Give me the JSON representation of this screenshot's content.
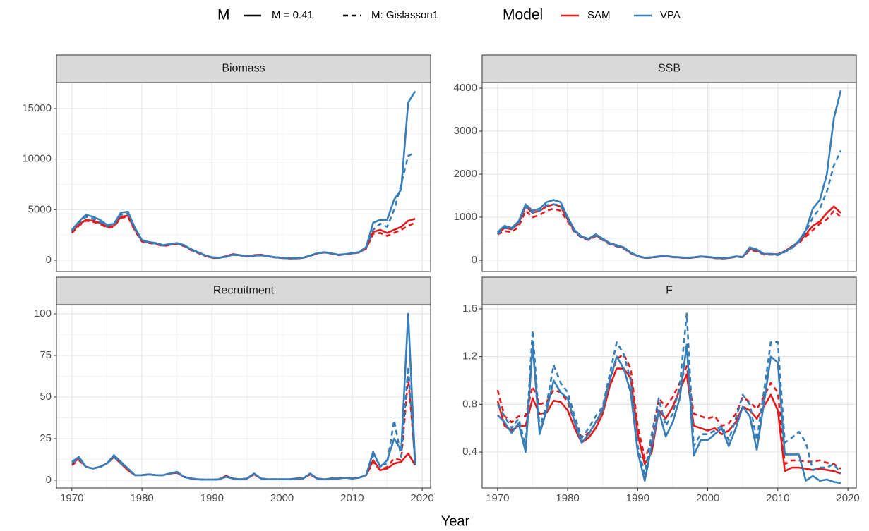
{
  "chart_data": {
    "type": "line",
    "x_label": "Year",
    "grid": true,
    "x": [
      1970,
      1971,
      1972,
      1973,
      1974,
      1975,
      1976,
      1977,
      1978,
      1979,
      1980,
      1981,
      1982,
      1983,
      1984,
      1985,
      1986,
      1987,
      1988,
      1989,
      1990,
      1991,
      1992,
      1993,
      1994,
      1995,
      1996,
      1997,
      1998,
      1999,
      2000,
      2001,
      2002,
      2003,
      2004,
      2005,
      2006,
      2007,
      2008,
      2009,
      2010,
      2011,
      2012,
      2013,
      2014,
      2015,
      2016,
      2017,
      2018,
      2019
    ],
    "xlim": [
      1967.8,
      2021.2
    ],
    "xticks": [
      1970,
      1980,
      1990,
      2000,
      2010,
      2020
    ],
    "legend": {
      "linetype": {
        "title": "M",
        "entries": [
          {
            "label": "M = 0.41",
            "dash": "solid"
          },
          {
            "label": "M: Gislasson1",
            "dash": "dashed"
          }
        ]
      },
      "color": {
        "title": "Model",
        "entries": [
          {
            "label": "SAM",
            "color": "#e41a1c"
          },
          {
            "label": "VPA",
            "color": "#377eb8"
          }
        ]
      }
    },
    "facets": [
      {
        "title": "Biomass",
        "ylim": [
          -1116,
          17575
        ],
        "yticks": [
          0,
          5000,
          10000,
          15000
        ],
        "series": [
          {
            "color": "#e41a1c",
            "dash": "solid",
            "values": [
              2800,
              3500,
              4000,
              3900,
              3700,
              3300,
              3400,
              4300,
              4400,
              3000,
              1900,
              1750,
              1650,
              1450,
              1550,
              1650,
              1450,
              1050,
              750,
              450,
              250,
              230,
              400,
              600,
              500,
              380,
              500,
              550,
              400,
              280,
              230,
              190,
              190,
              240,
              440,
              680,
              780,
              680,
              530,
              580,
              680,
              780,
              1200,
              2800,
              3000,
              2700,
              3000,
              3300,
              3900,
              4100
            ]
          },
          {
            "color": "#e41a1c",
            "dash": "dashed",
            "values": [
              2700,
              3400,
              3900,
              3800,
              3600,
              3200,
              3300,
              4200,
              4300,
              2900,
              1850,
              1700,
              1600,
              1400,
              1500,
              1600,
              1400,
              1000,
              720,
              430,
              240,
              220,
              380,
              580,
              480,
              360,
              480,
              530,
              380,
              270,
              220,
              180,
              180,
              230,
              420,
              660,
              760,
              660,
              510,
              560,
              660,
              760,
              1150,
              2600,
              2700,
              2400,
              2700,
              3000,
              3400,
              3700
            ]
          },
          {
            "color": "#377eb8",
            "dash": "solid",
            "values": [
              3000,
              3800,
              4500,
              4300,
              4000,
              3500,
              3600,
              4700,
              4800,
              3200,
              2000,
              1800,
              1700,
              1500,
              1600,
              1700,
              1500,
              1100,
              800,
              500,
              300,
              250,
              350,
              550,
              500,
              400,
              450,
              500,
              400,
              300,
              250,
              200,
              200,
              250,
              450,
              700,
              800,
              700,
              550,
              600,
              700,
              800,
              1300,
              3700,
              4000,
              4000,
              6000,
              7000,
              15600,
              16700
            ]
          },
          {
            "color": "#377eb8",
            "dash": "dashed",
            "values": [
              2900,
              3700,
              4300,
              4100,
              3800,
              3400,
              3500,
              4500,
              4600,
              3100,
              1950,
              1750,
              1650,
              1450,
              1550,
              1650,
              1450,
              1050,
              750,
              480,
              280,
              230,
              330,
              520,
              480,
              380,
              430,
              480,
              380,
              280,
              240,
              190,
              190,
              240,
              430,
              680,
              780,
              680,
              530,
              580,
              680,
              780,
              1250,
              3000,
              3600,
              3300,
              5000,
              7500,
              10300,
              10700
            ]
          }
        ]
      },
      {
        "title": "SSB",
        "ylim": [
          -262,
          4131
        ],
        "yticks": [
          0,
          1000,
          2000,
          3000,
          4000
        ],
        "series": [
          {
            "color": "#e41a1c",
            "dash": "solid",
            "values": [
              620,
              750,
              720,
              850,
              1250,
              1100,
              1150,
              1250,
              1300,
              1250,
              950,
              680,
              540,
              490,
              580,
              490,
              390,
              340,
              290,
              170,
              95,
              55,
              65,
              85,
              95,
              75,
              65,
              55,
              65,
              85,
              75,
              55,
              45,
              55,
              85,
              75,
              260,
              230,
              140,
              140,
              140,
              210,
              320,
              420,
              600,
              800,
              900,
              1100,
              1250,
              1100
            ]
          },
          {
            "color": "#e41a1c",
            "dash": "dashed",
            "values": [
              600,
              680,
              650,
              780,
              1150,
              1000,
              1050,
              1150,
              1200,
              1150,
              900,
              650,
              520,
              470,
              560,
              470,
              370,
              320,
              270,
              160,
              90,
              50,
              60,
              80,
              90,
              70,
              60,
              50,
              60,
              80,
              70,
              50,
              40,
              50,
              80,
              70,
              240,
              210,
              130,
              130,
              130,
              200,
              300,
              400,
              550,
              700,
              850,
              950,
              1150,
              1000
            ]
          },
          {
            "color": "#377eb8",
            "dash": "solid",
            "values": [
              650,
              800,
              750,
              900,
              1300,
              1150,
              1200,
              1350,
              1400,
              1350,
              1000,
              700,
              550,
              500,
              600,
              500,
              400,
              350,
              300,
              180,
              100,
              60,
              70,
              90,
              100,
              80,
              70,
              60,
              70,
              90,
              80,
              60,
              50,
              60,
              90,
              80,
              300,
              250,
              150,
              150,
              130,
              200,
              300,
              450,
              700,
              1200,
              1400,
              2000,
              3300,
              3950
            ]
          },
          {
            "color": "#377eb8",
            "dash": "dashed",
            "values": [
              600,
              760,
              720,
              860,
              1250,
              1100,
              1150,
              1280,
              1300,
              1280,
              950,
              670,
              530,
              480,
              580,
              480,
              380,
              330,
              280,
              170,
              95,
              55,
              65,
              85,
              95,
              75,
              65,
              55,
              65,
              85,
              75,
              55,
              45,
              55,
              85,
              75,
              280,
              230,
              140,
              140,
              120,
              190,
              280,
              420,
              650,
              1000,
              1200,
              1600,
              2200,
              2550
            ]
          }
        ]
      },
      {
        "title": "Recruitment",
        "ylim": [
          -4.7,
          105.5
        ],
        "yticks": [
          0,
          25,
          50,
          75,
          100
        ],
        "series": [
          {
            "color": "#e41a1c",
            "dash": "solid",
            "values": [
              10,
              13,
              8,
              7,
              8,
              10,
              14,
              10,
              6,
              3,
              3,
              3.5,
              3,
              3,
              4,
              4.5,
              2,
              1,
              0.5,
              0.3,
              0.3,
              0.5,
              2.5,
              1,
              0.5,
              1,
              3.5,
              1,
              0.5,
              0.5,
              0.5,
              0.5,
              1,
              1,
              3.5,
              1,
              0.5,
              1,
              1,
              1.5,
              1,
              1.5,
              3,
              12,
              6,
              7,
              10,
              11,
              16,
              9
            ]
          },
          {
            "color": "#e41a1c",
            "dash": "dashed",
            "values": [
              9,
              12,
              8,
              7,
              8,
              10,
              14,
              10,
              6,
              3,
              3,
              3.5,
              3,
              3,
              4,
              4.5,
              2,
              1,
              0.5,
              0.3,
              0.3,
              0.5,
              2.5,
              1,
              0.5,
              1,
              3.5,
              1,
              0.5,
              0.5,
              0.5,
              0.5,
              1,
              1,
              3.5,
              1,
              0.5,
              1,
              1,
              1.5,
              1,
              1.5,
              3,
              11,
              6,
              8,
              13,
              12,
              62,
              12
            ]
          },
          {
            "color": "#377eb8",
            "dash": "solid",
            "values": [
              11,
              14,
              8,
              7,
              8,
              10,
              15,
              11,
              7,
              3,
              3,
              3.5,
              3,
              3,
              4,
              5,
              2,
              1,
              0.5,
              0.3,
              0.3,
              0.5,
              2,
              1,
              0.5,
              1,
              4,
              1,
              0.5,
              0.5,
              0.5,
              0.5,
              1,
              1,
              4,
              1,
              0.5,
              1,
              1,
              1.5,
              1,
              1.5,
              3,
              17,
              8,
              12,
              25,
              18,
              100,
              10
            ]
          },
          {
            "color": "#377eb8",
            "dash": "dashed",
            "values": [
              10,
              13,
              8,
              7,
              8,
              10,
              14,
              10,
              7,
              3,
              3,
              3.5,
              3,
              3,
              4,
              5,
              2,
              1,
              0.5,
              0.3,
              0.3,
              0.5,
              2,
              1,
              0.5,
              1,
              4,
              1,
              0.5,
              0.5,
              0.5,
              0.5,
              1,
              1,
              4,
              1,
              0.5,
              1,
              1,
              1.5,
              1,
              1.5,
              3,
              15,
              9,
              10,
              36,
              14,
              68,
              9
            ]
          }
        ]
      },
      {
        "title": "F",
        "ylim": [
          0.099,
          1.635
        ],
        "yticks": [
          0.4,
          0.8,
          1.2,
          1.6
        ],
        "series": [
          {
            "color": "#e41a1c",
            "dash": "solid",
            "values": [
              0.83,
              0.62,
              0.58,
              0.62,
              0.62,
              0.85,
              0.72,
              0.73,
              0.83,
              0.82,
              0.75,
              0.6,
              0.48,
              0.52,
              0.6,
              0.72,
              0.95,
              1.1,
              1.1,
              1.02,
              0.55,
              0.3,
              0.4,
              0.75,
              0.68,
              0.78,
              0.92,
              1.05,
              0.62,
              0.6,
              0.58,
              0.6,
              0.55,
              0.58,
              0.65,
              0.78,
              0.75,
              0.68,
              0.78,
              0.88,
              0.75,
              0.24,
              0.27,
              0.27,
              0.26,
              0.25,
              0.26,
              0.25,
              0.24,
              0.22
            ]
          },
          {
            "color": "#e41a1c",
            "dash": "dashed",
            "values": [
              0.92,
              0.7,
              0.65,
              0.7,
              0.7,
              0.95,
              0.8,
              0.82,
              0.92,
              0.9,
              0.82,
              0.65,
              0.52,
              0.56,
              0.64,
              0.76,
              1.0,
              1.18,
              1.22,
              1.1,
              0.62,
              0.35,
              0.48,
              0.85,
              0.78,
              0.86,
              0.98,
              1.12,
              0.72,
              0.7,
              0.68,
              0.7,
              0.62,
              0.64,
              0.72,
              0.86,
              0.82,
              0.76,
              0.86,
              0.98,
              0.9,
              0.3,
              0.33,
              0.33,
              0.32,
              0.32,
              0.33,
              0.31,
              0.3,
              0.26
            ]
          },
          {
            "color": "#377eb8",
            "dash": "solid",
            "values": [
              0.71,
              0.65,
              0.56,
              0.64,
              0.4,
              1.3,
              0.55,
              0.75,
              1.0,
              0.9,
              0.85,
              0.65,
              0.48,
              0.55,
              0.65,
              0.75,
              1.0,
              1.2,
              1.1,
              0.9,
              0.4,
              0.16,
              0.45,
              0.75,
              0.53,
              0.65,
              0.85,
              1.3,
              0.37,
              0.5,
              0.5,
              0.55,
              0.6,
              0.45,
              0.6,
              0.78,
              0.7,
              0.42,
              0.8,
              1.2,
              1.15,
              0.38,
              0.38,
              0.38,
              0.16,
              0.2,
              0.16,
              0.17,
              0.15,
              0.14
            ]
          },
          {
            "color": "#377eb8",
            "dash": "dashed",
            "values": [
              0.8,
              0.7,
              0.6,
              0.68,
              0.45,
              1.42,
              0.6,
              0.8,
              1.13,
              0.98,
              0.9,
              0.7,
              0.52,
              0.6,
              0.7,
              0.78,
              1.05,
              1.32,
              1.22,
              1.0,
              0.45,
              0.22,
              0.55,
              0.85,
              0.62,
              0.72,
              0.95,
              1.56,
              0.45,
              0.55,
              0.55,
              0.58,
              0.62,
              0.5,
              0.68,
              0.88,
              0.8,
              0.5,
              0.9,
              1.32,
              1.32,
              0.48,
              0.52,
              0.57,
              0.48,
              0.25,
              0.27,
              0.27,
              0.3,
              0.22
            ]
          }
        ]
      }
    ]
  }
}
